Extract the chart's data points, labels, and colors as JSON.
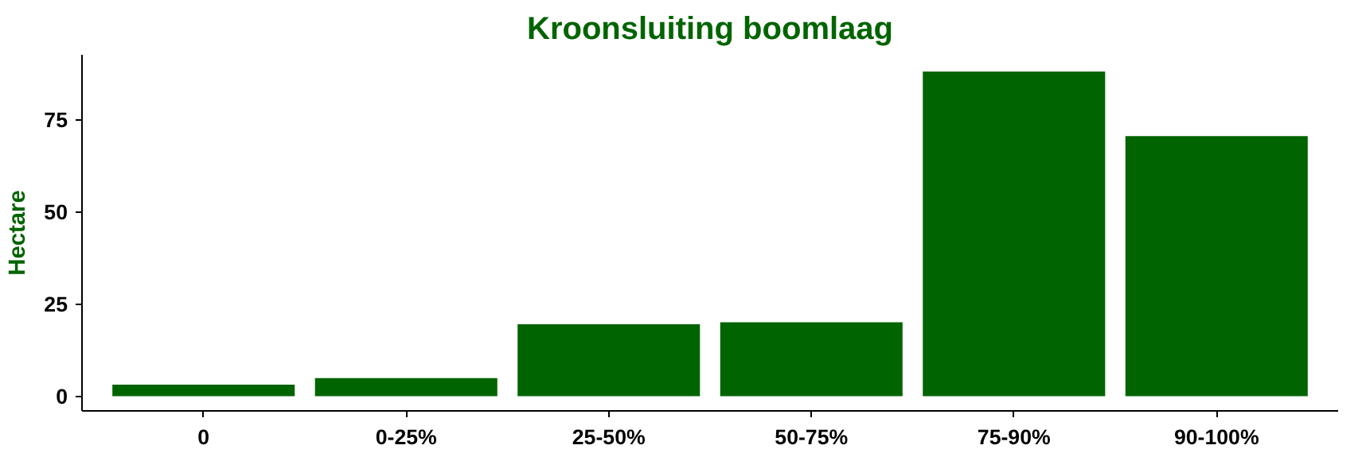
{
  "chart_data": {
    "type": "bar",
    "title": "Kroonsluiting boomlaag",
    "ylabel": "Hectare",
    "categories": [
      "0",
      "0-25%",
      "25-50%",
      "50-75%",
      "75-90%",
      "90-100%"
    ],
    "values": [
      3.1,
      4.9,
      19.5,
      20,
      88,
      70.5
    ],
    "color": "#006400",
    "ylim": [
      -4,
      92.5
    ],
    "yticks": [
      0,
      25,
      50,
      75
    ],
    "grid": false
  }
}
